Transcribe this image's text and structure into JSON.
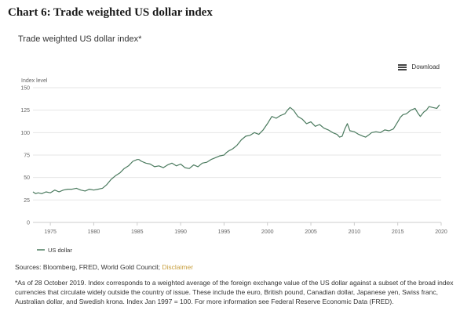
{
  "page": {
    "title": "Chart 6: Trade weighted US dollar index",
    "download_label": "Download",
    "sources_prefix": "Sources: Bloomberg, FRED, World Gold Council; ",
    "disclaimer_label": "Disclaimer",
    "footnote": "*As of 28 October 2019. Index corresponds to a weighted average of the foreign exchange value of the US dollar against a subset of the broad index currencies that circulate widely outside the country of issue. These include the euro, British pound, Canadian dollar, Japanese yen, Swiss franc, Australian dollar, and Swedish krona. Index Jan 1997 = 100. For more information see Federal Reserve Economic Data (FRED)."
  },
  "colors": {
    "line": "#4a7a5e",
    "grid": "#e6e6e6",
    "axis": "#cccccc",
    "tick_text": "#666666"
  },
  "chart_data": {
    "type": "line",
    "title": "Trade weighted US dollar index*",
    "ylabel": "Index level",
    "xlim": [
      1973,
      2020
    ],
    "ylim": [
      0,
      150
    ],
    "x_ticks": [
      1975,
      1980,
      1985,
      1990,
      1995,
      2000,
      2005,
      2010,
      2015,
      2020
    ],
    "y_ticks": [
      0,
      25,
      50,
      75,
      100,
      125,
      150
    ],
    "grid": true,
    "legend_position": "bottom-left",
    "series": [
      {
        "name": "US dollar",
        "x": [
          1973.0,
          1973.3,
          1973.6,
          1974.0,
          1974.5,
          1975.0,
          1975.5,
          1976.0,
          1976.5,
          1977.0,
          1977.5,
          1978.0,
          1978.5,
          1979.0,
          1979.5,
          1980.0,
          1980.5,
          1981.0,
          1981.5,
          1982.0,
          1982.5,
          1983.0,
          1983.5,
          1984.0,
          1984.5,
          1985.0,
          1985.2,
          1985.5,
          1986.0,
          1986.5,
          1987.0,
          1987.5,
          1988.0,
          1988.5,
          1989.0,
          1989.5,
          1990.0,
          1990.5,
          1991.0,
          1991.5,
          1992.0,
          1992.5,
          1993.0,
          1993.5,
          1994.0,
          1994.5,
          1995.0,
          1995.3,
          1995.6,
          1996.0,
          1996.5,
          1997.0,
          1997.5,
          1998.0,
          1998.5,
          1999.0,
          1999.5,
          2000.0,
          2000.5,
          2001.0,
          2001.5,
          2002.0,
          2002.3,
          2002.6,
          2003.0,
          2003.5,
          2004.0,
          2004.5,
          2005.0,
          2005.5,
          2006.0,
          2006.5,
          2007.0,
          2007.5,
          2008.0,
          2008.3,
          2008.6,
          2008.9,
          2009.2,
          2009.5,
          2010.0,
          2010.5,
          2011.0,
          2011.3,
          2011.6,
          2012.0,
          2012.5,
          2013.0,
          2013.5,
          2014.0,
          2014.5,
          2015.0,
          2015.3,
          2015.6,
          2016.0,
          2016.5,
          2017.0,
          2017.3,
          2017.6,
          2018.0,
          2018.3,
          2018.6,
          2019.0,
          2019.5,
          2019.8
        ],
        "values": [
          34,
          32,
          33,
          32,
          34,
          33,
          36,
          34,
          36,
          37,
          37,
          38,
          36,
          35,
          37,
          36,
          37,
          38,
          42,
          48,
          52,
          55,
          60,
          63,
          68,
          70,
          70,
          68,
          66,
          65,
          62,
          63,
          61,
          64,
          66,
          63,
          65,
          61,
          60,
          64,
          62,
          66,
          67,
          70,
          72,
          74,
          75,
          78,
          80,
          82,
          86,
          92,
          96,
          97,
          100,
          98,
          103,
          110,
          118,
          116,
          119,
          121,
          125,
          128,
          125,
          118,
          115,
          110,
          112,
          107,
          109,
          105,
          103,
          100,
          98,
          95,
          96,
          104,
          110,
          102,
          101,
          98,
          96,
          95,
          97,
          100,
          101,
          100,
          103,
          102,
          104,
          112,
          117,
          120,
          121,
          125,
          127,
          122,
          118,
          123,
          125,
          129,
          128,
          127,
          131
        ]
      }
    ]
  }
}
